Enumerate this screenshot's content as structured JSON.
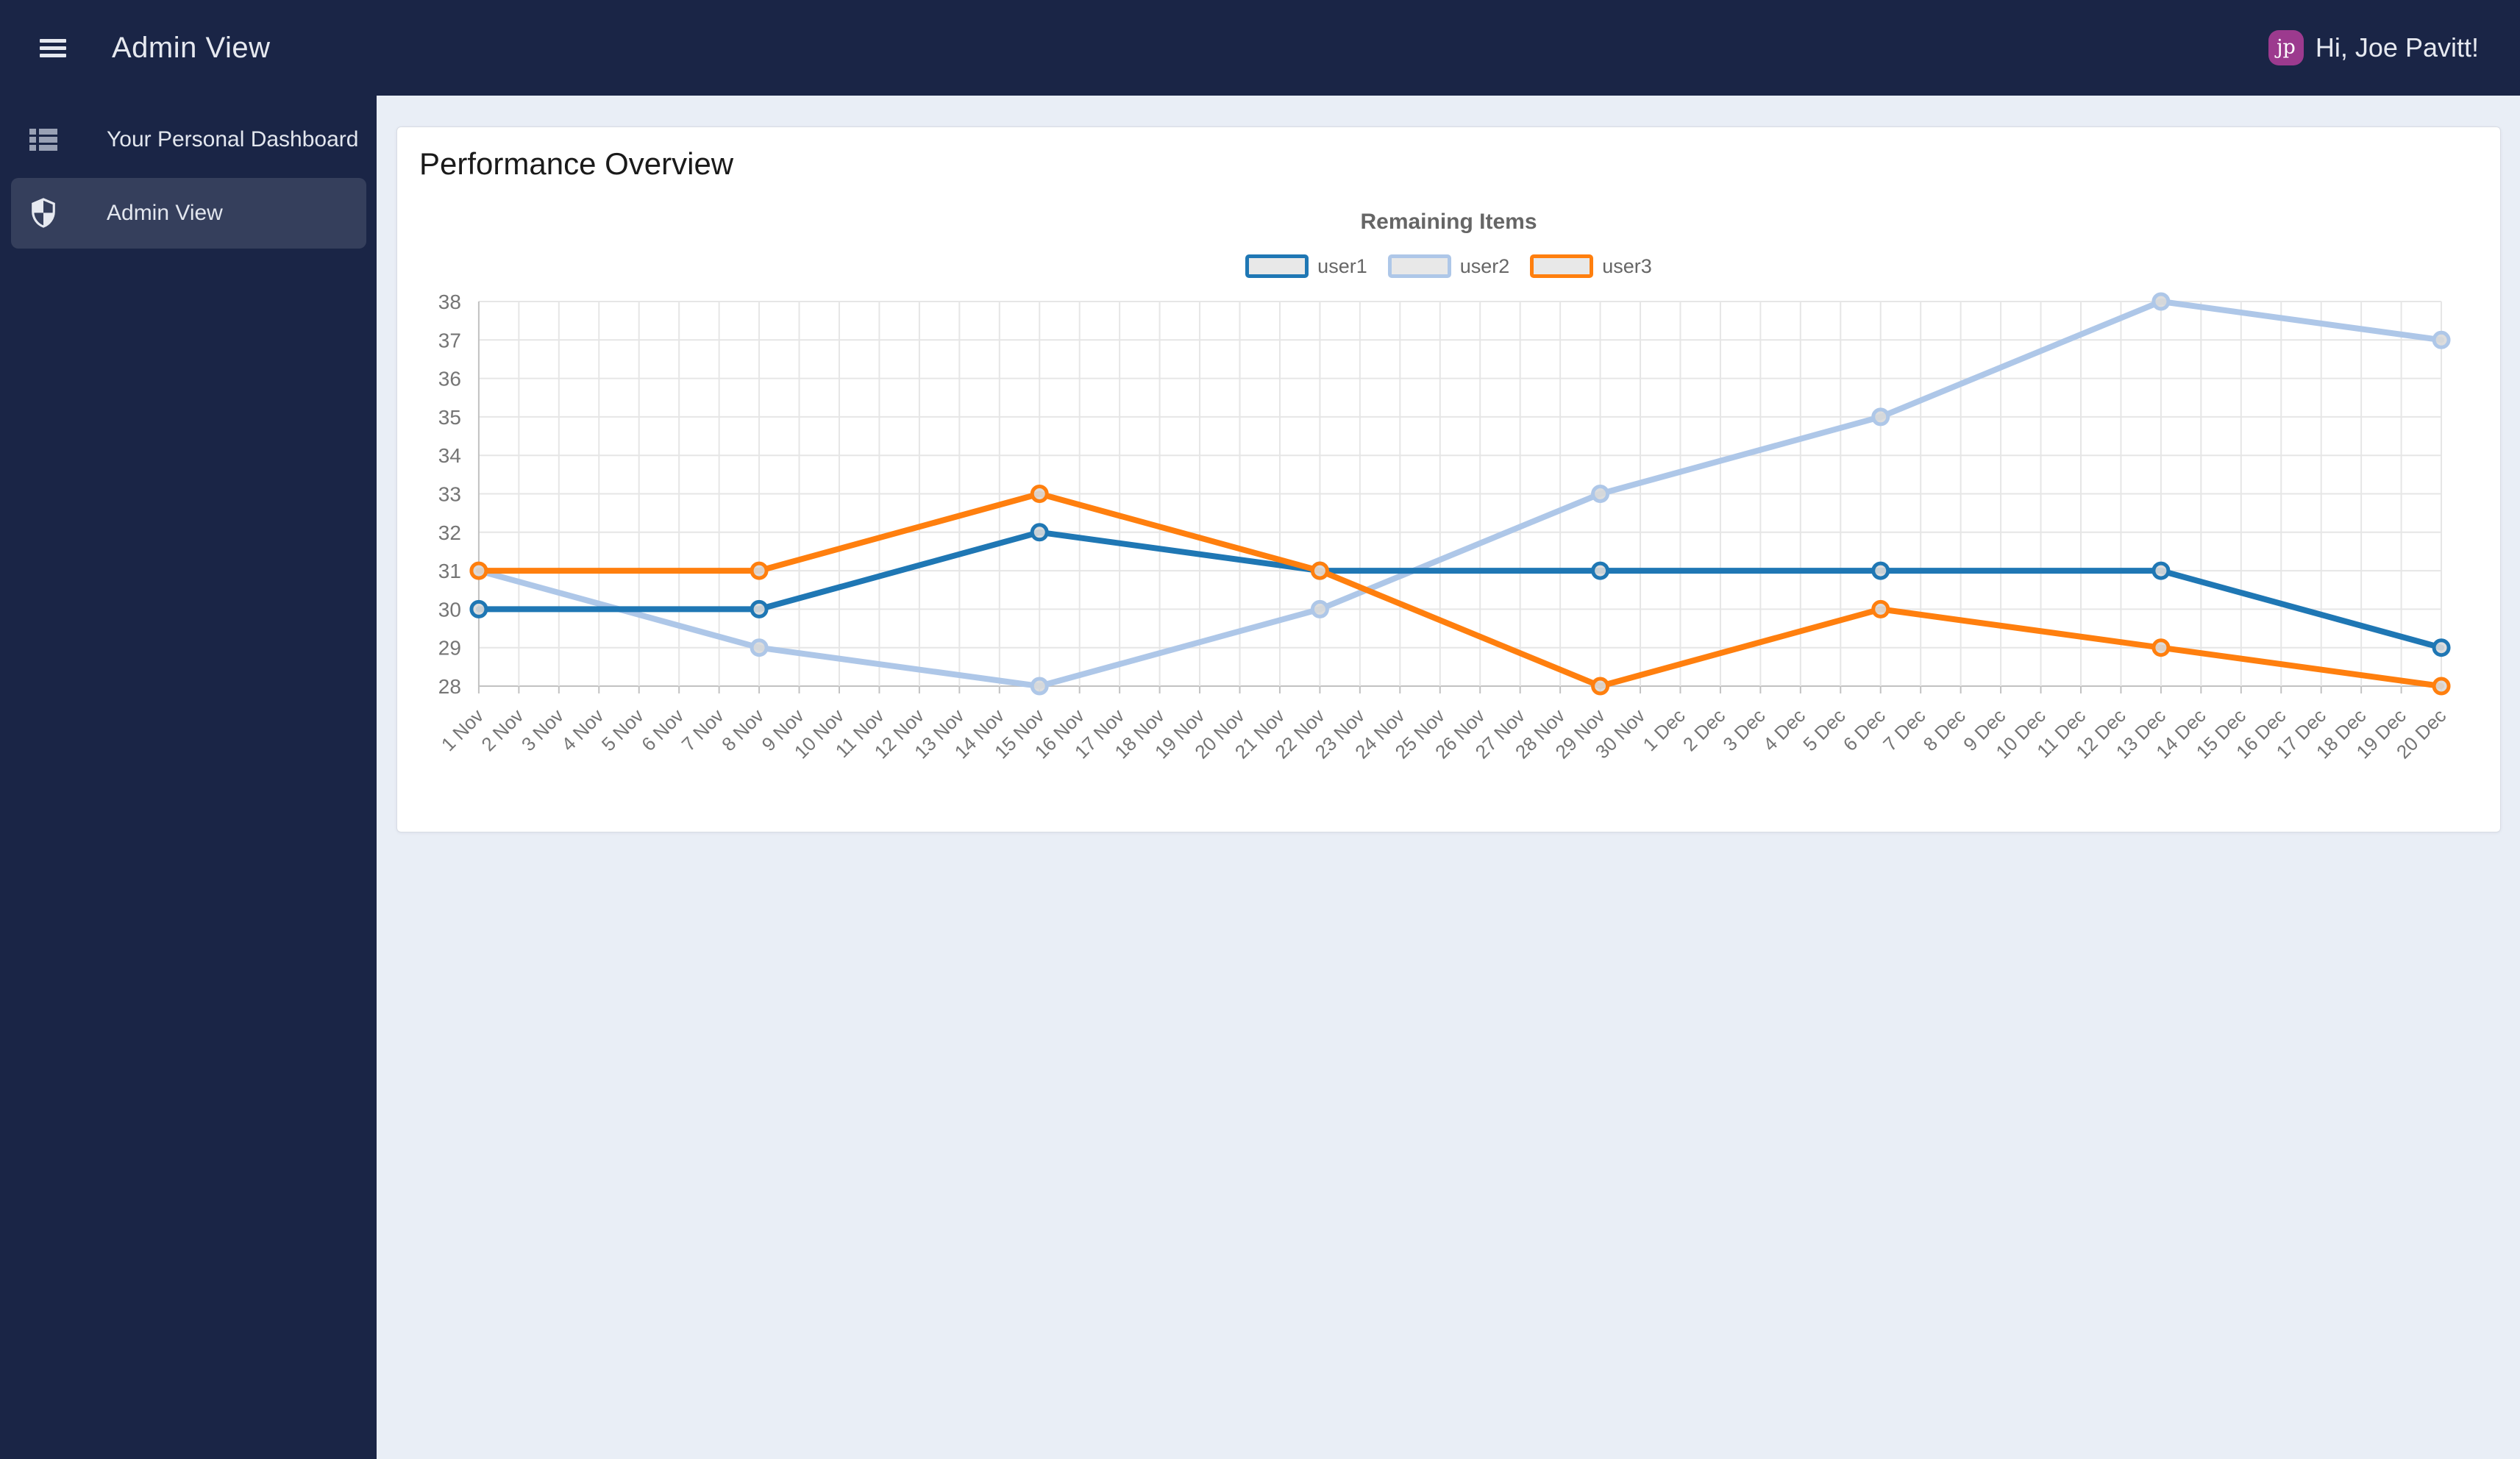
{
  "colors": {
    "topbar_bg": "#1a2546",
    "sidebar_bg": "#1a2546",
    "sidebar_active_bg": "rgba(255,255,255,0.12)",
    "content_bg": "#e9eef6",
    "card_bg": "#ffffff",
    "avatar_bg": "#9c3a8e",
    "header_text": "#e6e9f0"
  },
  "header": {
    "title": "Admin View",
    "greeting": "Hi, Joe Pavitt!",
    "avatar_initials": "jp"
  },
  "sidebar": {
    "items": [
      {
        "label": "Your Personal Dashboard",
        "icon": "dashboard-list-icon",
        "active": false
      },
      {
        "label": "Admin View",
        "icon": "shield-icon",
        "active": true
      }
    ]
  },
  "card": {
    "title": "Performance Overview"
  },
  "chart_data": {
    "type": "line",
    "title": "Remaining Items",
    "x": [
      "1 Nov",
      "2 Nov",
      "3 Nov",
      "4 Nov",
      "5 Nov",
      "6 Nov",
      "7 Nov",
      "8 Nov",
      "9 Nov",
      "10 Nov",
      "11 Nov",
      "12 Nov",
      "13 Nov",
      "14 Nov",
      "15 Nov",
      "16 Nov",
      "17 Nov",
      "18 Nov",
      "19 Nov",
      "20 Nov",
      "21 Nov",
      "22 Nov",
      "23 Nov",
      "24 Nov",
      "25 Nov",
      "26 Nov",
      "27 Nov",
      "28 Nov",
      "29 Nov",
      "30 Nov",
      "1 Dec",
      "2 Dec",
      "3 Dec",
      "4 Dec",
      "5 Dec",
      "6 Dec",
      "7 Dec",
      "8 Dec",
      "9 Dec",
      "10 Dec",
      "11 Dec",
      "12 Dec",
      "13 Dec",
      "14 Dec",
      "15 Dec",
      "16 Dec",
      "17 Dec",
      "18 Dec",
      "19 Dec",
      "20 Dec"
    ],
    "point_x_indices": [
      0,
      7,
      14,
      21,
      28,
      35,
      42,
      49
    ],
    "x_points": [
      "1 Nov",
      "8 Nov",
      "15 Nov",
      "22 Nov",
      "29 Nov",
      "6 Dec",
      "13 Dec",
      "20 Dec"
    ],
    "series": [
      {
        "name": "user1",
        "color": "#1f77b4",
        "values": [
          30,
          30,
          32,
          31,
          31,
          31,
          31,
          29
        ]
      },
      {
        "name": "user2",
        "color": "#aec7e8",
        "values": [
          31,
          29,
          28,
          30,
          33,
          35,
          38,
          37
        ]
      },
      {
        "name": "user3",
        "color": "#ff7f0e",
        "values": [
          31,
          31,
          33,
          31,
          28,
          30,
          29,
          28
        ]
      }
    ],
    "draw_order": [
      1,
      0,
      2
    ],
    "ylim": [
      28,
      38
    ],
    "yticks": [
      28,
      29,
      30,
      31,
      32,
      33,
      34,
      35,
      36,
      37,
      38
    ],
    "grid": true,
    "legend_position": "top",
    "point_fill": "#d9d9d9",
    "style_colors": {
      "grid": "#e6e6e6",
      "axis": "#c2c2c2",
      "tick_text": "#757575",
      "title_text": "#666666"
    }
  }
}
